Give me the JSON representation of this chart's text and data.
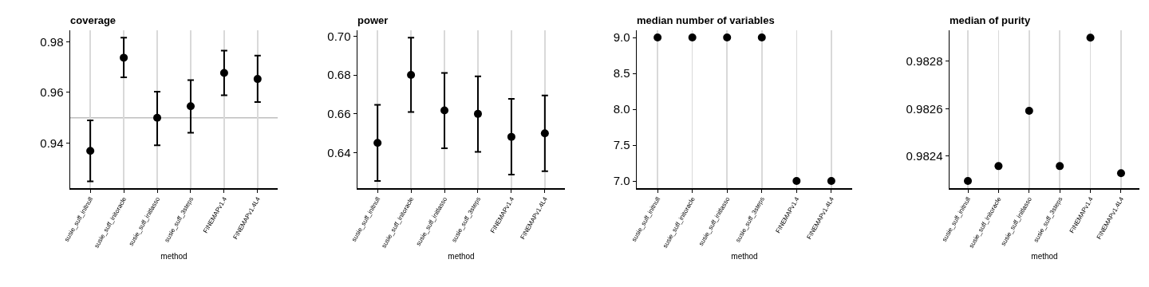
{
  "chart_data": [
    {
      "type": "scatter",
      "title": "coverage",
      "xlabel": "method",
      "categories": [
        "susie_suff_initnull",
        "susie_suff_initoracle",
        "susie_suff_initlasso",
        "susie_suff_3steps",
        "FINEMAPv1.4",
        "FINEMAPv1.4L4"
      ],
      "values": [
        0.937,
        0.9737,
        0.95,
        0.9546,
        0.9677,
        0.9653
      ],
      "errors": [
        [
          0.925,
          0.949
        ],
        [
          0.966,
          0.9816
        ],
        [
          0.9392,
          0.9603
        ],
        [
          0.9441,
          0.9649
        ],
        [
          0.9589,
          0.9765
        ],
        [
          0.9562,
          0.9745
        ]
      ],
      "color": "#000000",
      "marker": "circle",
      "grid": "x",
      "ylim": [
        0.9223,
        0.9845
      ],
      "yticks": [
        0.94,
        0.96,
        0.98
      ],
      "ref_lines": [
        {
          "axis": "y",
          "value": 0.95,
          "color": "#bebebe"
        }
      ]
    },
    {
      "type": "scatter",
      "title": "power",
      "xlabel": "method",
      "categories": [
        "susie_suff_initnull",
        "susie_suff_initoracle",
        "susie_suff_initlasso",
        "susie_suff_3steps",
        "FINEMAPv1.4",
        "FINEMAPv1.4L4"
      ],
      "values": [
        0.6451,
        0.68,
        0.6618,
        0.66,
        0.6482,
        0.65
      ],
      "errors": [
        [
          0.6255,
          0.6647
        ],
        [
          0.661,
          0.6992
        ],
        [
          0.6423,
          0.6811
        ],
        [
          0.6405,
          0.6793
        ],
        [
          0.6288,
          0.6677
        ],
        [
          0.6305,
          0.6695
        ]
      ],
      "color": "#000000",
      "marker": "circle",
      "grid": "x",
      "ylim": [
        0.6218,
        0.703
      ],
      "yticks": [
        0.64,
        0.66,
        0.68,
        {
          "value": 0.7,
          "label": "0.70"
        }
      ]
    },
    {
      "type": "scatter",
      "title": "median number of variables",
      "xlabel": "method",
      "categories": [
        "susie_suff_initnull",
        "susie_suff_initoracle",
        "susie_suff_initlasso",
        "susie_suff_3steps",
        "FINEMAPv1.4",
        "FINEMAPv1.4L4"
      ],
      "values": [
        9,
        9,
        9,
        9,
        7,
        7
      ],
      "color": "#000000",
      "marker": "circle",
      "grid": "x",
      "ylim": [
        6.9,
        9.1
      ],
      "yticks": [
        {
          "value": 7,
          "label": "7.0"
        },
        7.5,
        {
          "value": 8,
          "label": "8.0"
        },
        8.5,
        {
          "value": 9,
          "label": "9.0"
        }
      ]
    },
    {
      "type": "scatter",
      "title": "median of purity",
      "xlabel": "method",
      "categories": [
        "susie_suff_initnull",
        "susie_suff_initoracle",
        "susie_suff_initlasso",
        "susie_suff_3steps",
        "FINEMAPv1.4",
        "FINEMAPv1.4L4"
      ],
      "values": [
        0.982295,
        0.982358,
        0.982591,
        0.982358,
        0.9829,
        0.982328
      ],
      "color": "#000000",
      "marker": "circle",
      "grid": "x",
      "ylim": [
        0.982265,
        0.982931
      ],
      "yticks": [
        0.9824,
        0.9826,
        0.9828
      ]
    }
  ]
}
